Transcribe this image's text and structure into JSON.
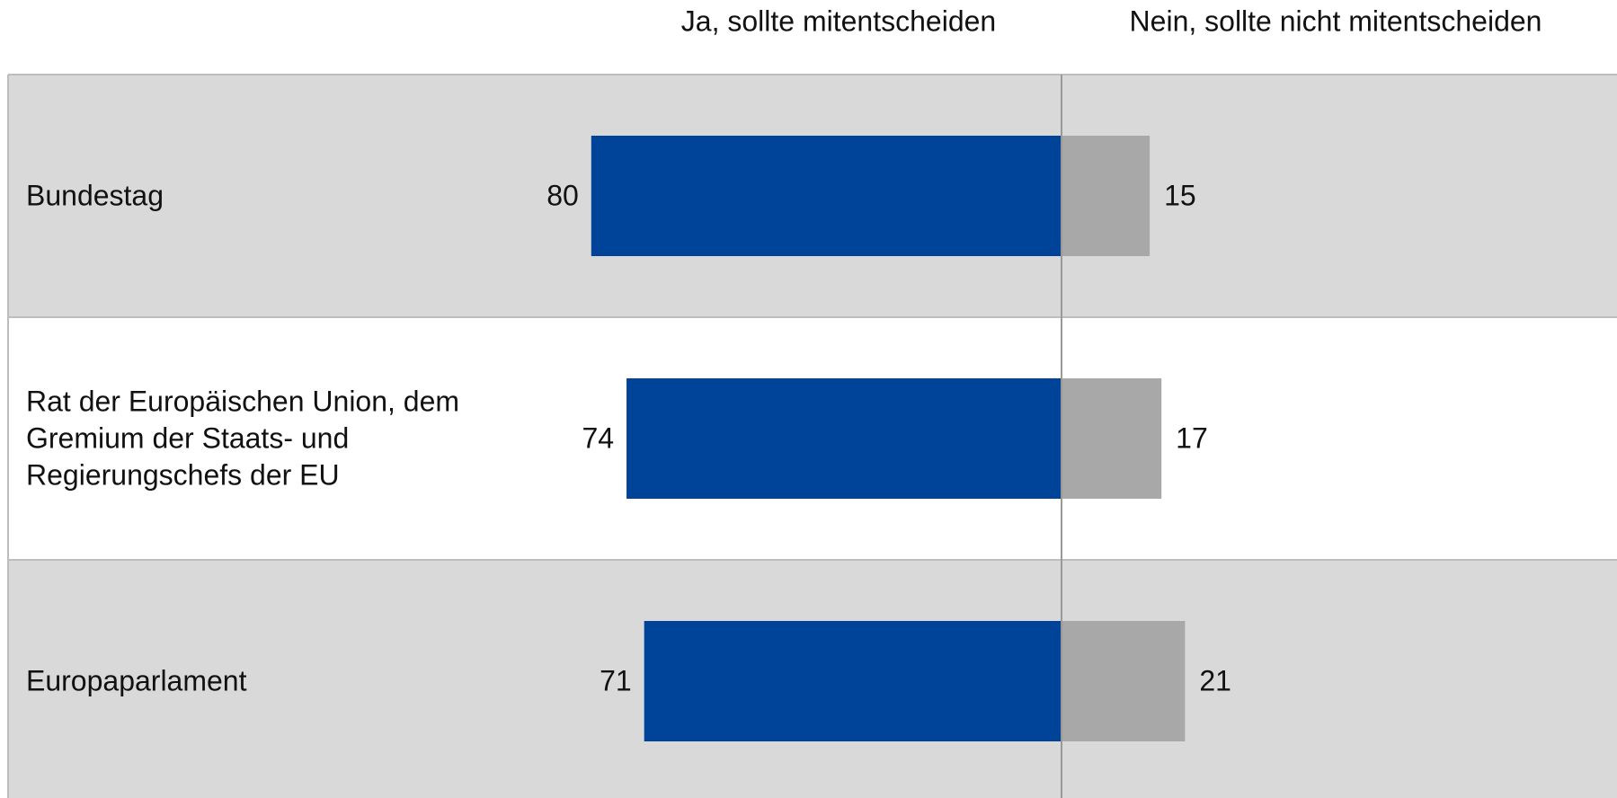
{
  "chart_data": {
    "type": "diverging-bar",
    "categories": [
      "Bundestag",
      "Rat der Europäischen Union, dem Gremium der Staats- und Regierungschefs der EU",
      "Europaparlament"
    ],
    "series": [
      {
        "name": "Ja, sollte mitentscheiden",
        "color": "#00449a",
        "values": [
          80,
          74,
          71
        ]
      },
      {
        "name": "Nein, sollte nicht mitentscheiden",
        "color": "#a8a8a8",
        "values": [
          15,
          17,
          21
        ]
      }
    ]
  }
}
